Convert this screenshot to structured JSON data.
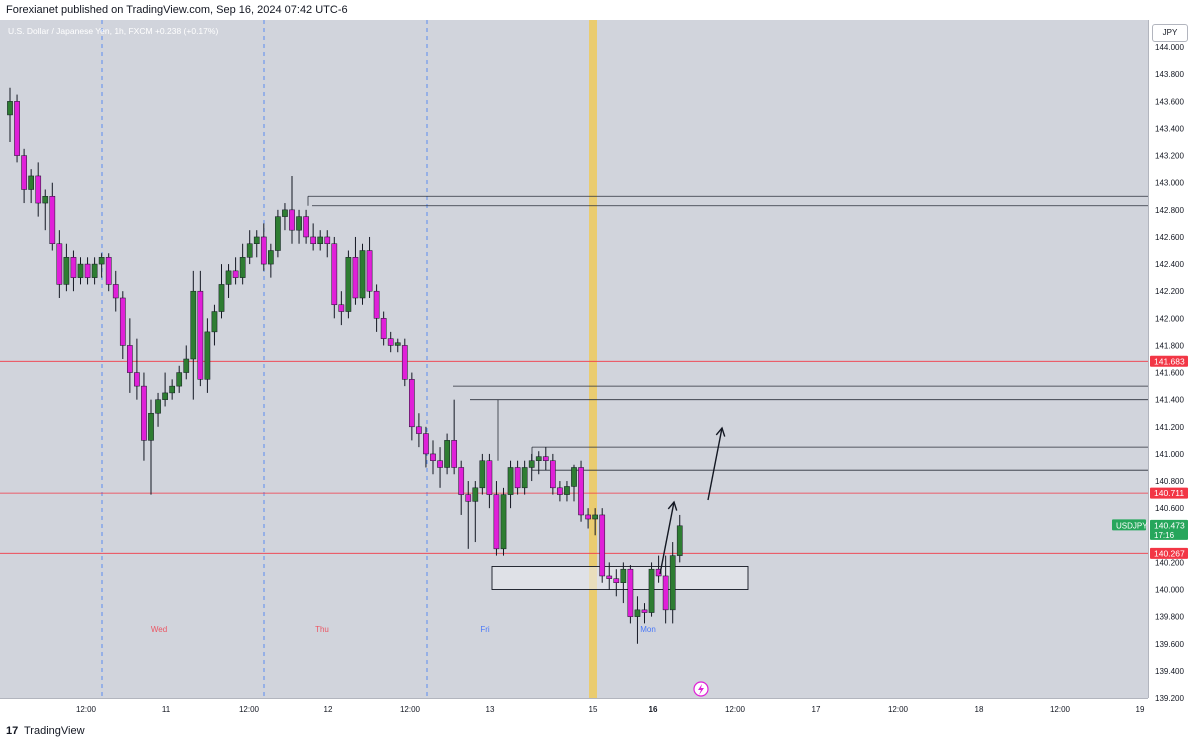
{
  "header": {
    "publisher": "Forexianet published on TradingView.com, Sep 16, 2024 07:42 UTC-6"
  },
  "legend": {
    "symbol": "U.S. Dollar / Japanese Yen, 1h, FXCM",
    "change": "+0.238 (+0.17%)"
  },
  "scale_currency": "JPY",
  "footer": {
    "brand": "TradingView",
    "logo": "17"
  },
  "chart_data": {
    "type": "candlestick",
    "ylim": [
      139.2,
      144.2
    ],
    "price_ticks": [
      "144.000",
      "143.800",
      "143.600",
      "143.400",
      "143.200",
      "143.000",
      "142.800",
      "142.600",
      "142.400",
      "142.200",
      "142.000",
      "141.800",
      "141.600",
      "141.400",
      "141.200",
      "141.000",
      "140.800",
      "140.600",
      "140.400",
      "140.200",
      "140.000",
      "139.800",
      "139.600",
      "139.400",
      "139.200"
    ],
    "time_labels": [
      "12:00",
      "11",
      "12:00",
      "12",
      "12:00",
      "13",
      "15",
      "16",
      "12:00",
      "17",
      "12:00",
      "18",
      "12:00",
      "19"
    ],
    "time_bold": [
      "16"
    ],
    "day_labels": [
      {
        "label": "Wed",
        "color": "#f23645"
      },
      {
        "label": "Thu",
        "color": "#f23645"
      },
      {
        "label": "Fri",
        "color": "#2962ff"
      },
      {
        "label": "Mon",
        "color": "#2962ff"
      }
    ],
    "horizontal_levels": [
      {
        "price": "141.683",
        "value": 141.683,
        "color": "#f23645"
      },
      {
        "price": "140.711",
        "value": 140.711,
        "color": "#f23645"
      },
      {
        "price": "140.267",
        "value": 140.267,
        "color": "#f23645"
      }
    ],
    "current_price": {
      "symbol": "USDJPY",
      "price": "140.473",
      "countdown": "17:16",
      "value": 140.473,
      "color": "#26a65b"
    },
    "resistance_lines": [
      142.9,
      142.83,
      141.5,
      141.4,
      141.05,
      140.88
    ],
    "demand_zone": {
      "top": 140.17,
      "bottom": 140.0
    },
    "candles": [
      [
        143.5,
        143.7,
        143.3,
        143.6
      ],
      [
        143.6,
        143.65,
        143.15,
        143.2
      ],
      [
        143.2,
        143.25,
        142.85,
        142.95
      ],
      [
        142.95,
        143.1,
        142.85,
        143.05
      ],
      [
        143.05,
        143.15,
        142.75,
        142.85
      ],
      [
        142.85,
        142.95,
        142.65,
        142.9
      ],
      [
        142.9,
        143.0,
        142.5,
        142.55
      ],
      [
        142.55,
        142.65,
        142.15,
        142.25
      ],
      [
        142.25,
        142.55,
        142.2,
        142.45
      ],
      [
        142.45,
        142.5,
        142.2,
        142.3
      ],
      [
        142.3,
        142.45,
        142.25,
        142.4
      ],
      [
        142.4,
        142.45,
        142.25,
        142.3
      ],
      [
        142.3,
        142.45,
        142.25,
        142.4
      ],
      [
        142.4,
        142.48,
        142.3,
        142.45
      ],
      [
        142.45,
        142.48,
        142.2,
        142.25
      ],
      [
        142.25,
        142.35,
        142.05,
        142.15
      ],
      [
        142.15,
        142.2,
        141.7,
        141.8
      ],
      [
        141.8,
        142.0,
        141.45,
        141.6
      ],
      [
        141.6,
        141.85,
        141.4,
        141.5
      ],
      [
        141.5,
        141.6,
        140.95,
        141.1
      ],
      [
        141.1,
        141.4,
        140.7,
        141.3
      ],
      [
        141.3,
        141.45,
        141.2,
        141.4
      ],
      [
        141.4,
        141.6,
        141.35,
        141.45
      ],
      [
        141.45,
        141.55,
        141.4,
        141.5
      ],
      [
        141.5,
        141.65,
        141.45,
        141.6
      ],
      [
        141.6,
        141.8,
        141.55,
        141.7
      ],
      [
        141.7,
        142.35,
        141.4,
        142.2
      ],
      [
        142.2,
        142.35,
        141.5,
        141.55
      ],
      [
        141.55,
        142.0,
        141.45,
        141.9
      ],
      [
        141.9,
        142.1,
        141.8,
        142.05
      ],
      [
        142.05,
        142.4,
        142.0,
        142.25
      ],
      [
        142.25,
        142.4,
        142.15,
        142.35
      ],
      [
        142.35,
        142.45,
        142.25,
        142.3
      ],
      [
        142.3,
        142.55,
        142.25,
        142.45
      ],
      [
        142.45,
        142.65,
        142.4,
        142.55
      ],
      [
        142.55,
        142.65,
        142.45,
        142.6
      ],
      [
        142.6,
        142.7,
        142.35,
        142.4
      ],
      [
        142.4,
        142.55,
        142.3,
        142.5
      ],
      [
        142.5,
        142.8,
        142.45,
        142.75
      ],
      [
        142.75,
        142.85,
        142.65,
        142.8
      ],
      [
        142.8,
        143.05,
        142.55,
        142.65
      ],
      [
        142.65,
        142.8,
        142.55,
        142.75
      ],
      [
        142.75,
        142.8,
        142.55,
        142.6
      ],
      [
        142.6,
        142.7,
        142.5,
        142.55
      ],
      [
        142.55,
        142.65,
        142.5,
        142.6
      ],
      [
        142.6,
        142.65,
        142.45,
        142.55
      ],
      [
        142.55,
        142.6,
        142.0,
        142.1
      ],
      [
        142.1,
        142.2,
        141.95,
        142.05
      ],
      [
        142.05,
        142.5,
        142.0,
        142.45
      ],
      [
        142.45,
        142.6,
        142.1,
        142.15
      ],
      [
        142.15,
        142.55,
        142.1,
        142.5
      ],
      [
        142.5,
        142.6,
        142.15,
        142.2
      ],
      [
        142.2,
        142.25,
        141.9,
        142.0
      ],
      [
        142.0,
        142.05,
        141.8,
        141.85
      ],
      [
        141.85,
        141.9,
        141.75,
        141.8
      ],
      [
        141.8,
        141.85,
        141.75,
        141.82
      ],
      [
        141.8,
        141.85,
        141.5,
        141.55
      ],
      [
        141.55,
        141.6,
        141.1,
        141.2
      ],
      [
        141.2,
        141.3,
        141.05,
        141.15
      ],
      [
        141.15,
        141.2,
        140.9,
        141.0
      ],
      [
        141.0,
        141.1,
        140.85,
        140.95
      ],
      [
        140.95,
        141.05,
        140.75,
        140.9
      ],
      [
        140.9,
        141.15,
        140.85,
        141.1
      ],
      [
        141.1,
        141.4,
        140.85,
        140.9
      ],
      [
        140.9,
        140.95,
        140.55,
        140.7
      ],
      [
        140.7,
        140.8,
        140.3,
        140.65
      ],
      [
        140.65,
        140.8,
        140.35,
        140.75
      ],
      [
        140.75,
        141.0,
        140.7,
        140.95
      ],
      [
        140.95,
        141.0,
        140.6,
        140.7
      ],
      [
        140.7,
        140.8,
        140.25,
        140.3
      ],
      [
        140.3,
        140.75,
        140.25,
        140.7
      ],
      [
        140.7,
        140.95,
        140.6,
        140.9
      ],
      [
        140.9,
        140.95,
        140.7,
        140.75
      ],
      [
        140.75,
        140.95,
        140.7,
        140.9
      ],
      [
        140.9,
        141.0,
        140.8,
        140.95
      ],
      [
        140.95,
        141.02,
        140.85,
        140.98
      ],
      [
        140.98,
        141.05,
        140.88,
        140.95
      ],
      [
        140.95,
        141.0,
        140.7,
        140.75
      ],
      [
        140.75,
        140.8,
        140.65,
        140.7
      ],
      [
        140.7,
        140.8,
        140.65,
        140.76
      ],
      [
        140.76,
        140.92,
        140.65,
        140.9
      ],
      [
        140.9,
        140.95,
        140.5,
        140.55
      ],
      [
        140.55,
        140.6,
        140.45,
        140.52
      ],
      [
        140.52,
        140.6,
        140.4,
        140.55
      ],
      [
        140.55,
        140.6,
        140.05,
        140.1
      ],
      [
        140.1,
        140.2,
        140.0,
        140.08
      ],
      [
        140.08,
        140.15,
        139.95,
        140.05
      ],
      [
        140.05,
        140.2,
        139.9,
        140.15
      ],
      [
        140.15,
        140.18,
        139.75,
        139.8
      ],
      [
        139.8,
        139.95,
        139.6,
        139.85
      ],
      [
        139.85,
        139.9,
        139.75,
        139.83
      ],
      [
        139.83,
        140.2,
        139.8,
        140.15
      ],
      [
        140.15,
        140.25,
        140.05,
        140.1
      ],
      [
        140.1,
        140.25,
        139.75,
        139.85
      ],
      [
        139.85,
        140.35,
        139.75,
        140.25
      ],
      [
        140.25,
        140.55,
        140.2,
        140.47
      ]
    ]
  }
}
